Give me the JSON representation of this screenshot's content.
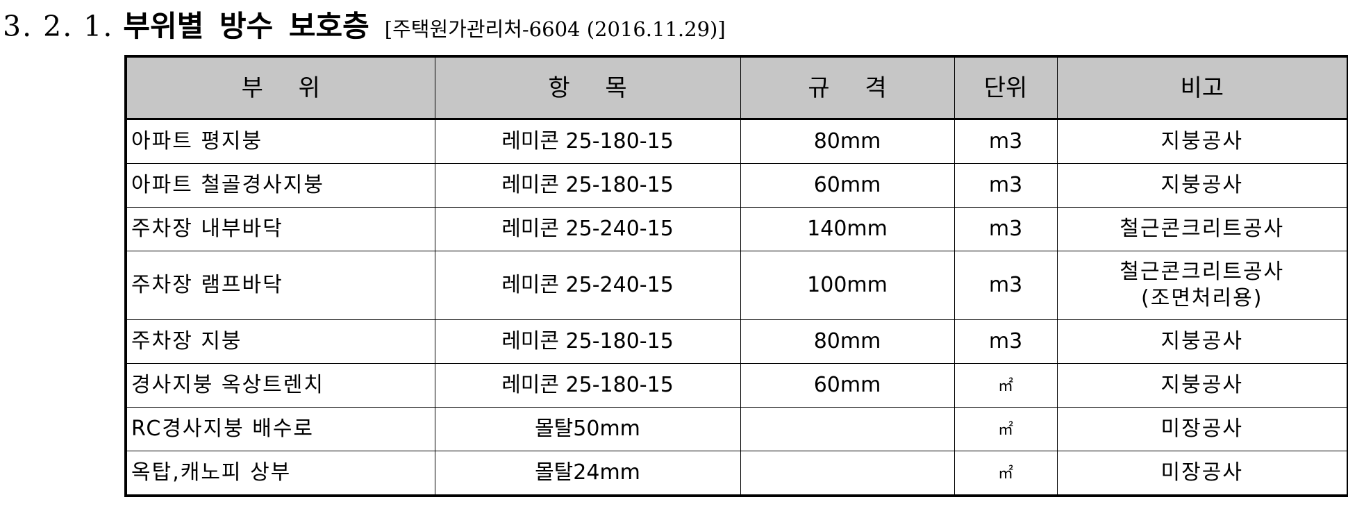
{
  "heading": {
    "number": "3. 2. 1.",
    "title": "부위별 방수 보호층",
    "reference": "[주택원가관리처-6604 (2016.11.29)]"
  },
  "table": {
    "columns": [
      "부 위",
      "항 목",
      "규 격",
      "단위",
      "비고"
    ],
    "rows": [
      {
        "location": "아파트 평지붕",
        "item": "레미콘 25-180-15",
        "spec": "80mm",
        "unit": "m3",
        "note": "지붕공사"
      },
      {
        "location": "아파트 철골경사지붕",
        "item": "레미콘 25-180-15",
        "spec": "60mm",
        "unit": "m3",
        "note": "지붕공사"
      },
      {
        "location": "주차장 내부바닥",
        "item": "레미콘 25-240-15",
        "spec": "140mm",
        "unit": "m3",
        "note": "철근콘크리트공사"
      },
      {
        "location": "주차장 램프바닥",
        "item": "레미콘 25-240-15",
        "spec": "100mm",
        "unit": "m3",
        "note": "철근콘크리트공사",
        "note2": "(조면처리용)"
      },
      {
        "location": "주차장 지붕",
        "item": "레미콘 25-180-15",
        "spec": "80mm",
        "unit": "m3",
        "note": "지붕공사"
      },
      {
        "location": "경사지붕 옥상트렌치",
        "item": "레미콘 25-180-15",
        "spec": "60mm",
        "unit": "㎡",
        "note": "지붕공사"
      },
      {
        "location": "RC경사지붕 배수로",
        "item": "몰탈50mm",
        "spec": "",
        "unit": "㎡",
        "note": "미장공사"
      },
      {
        "location": "옥탑,캐노피 상부",
        "item": "몰탈24mm",
        "spec": "",
        "unit": "㎡",
        "note": "미장공사"
      }
    ]
  }
}
